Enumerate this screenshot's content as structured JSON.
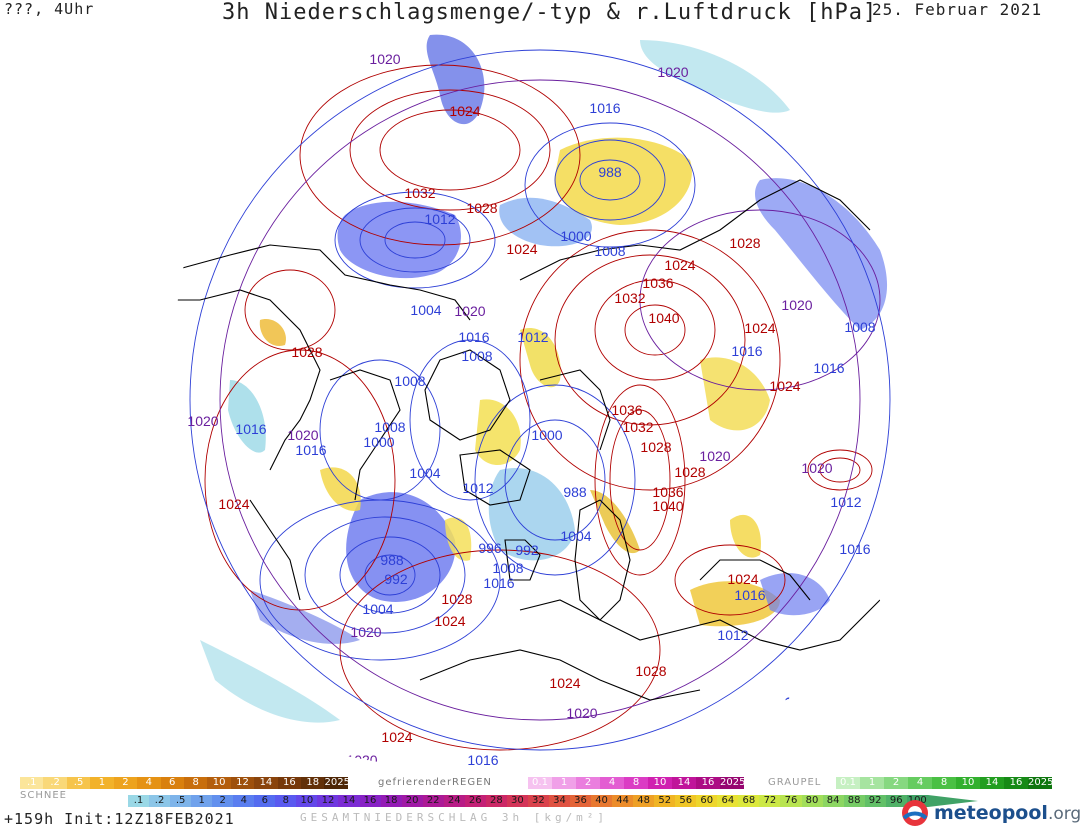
{
  "header": {
    "left": "???, 4Uhr",
    "title": "3h Niederschlagsmenge/-typ & r.Luftdruck [hPa]",
    "date": "25. Februar 2021"
  },
  "footer": {
    "run_info": "+159h Init:12Z18FEB2021",
    "total_label": "GESAMTNIEDERSCHLAG 3h [kg/m²]",
    "brand_main": "meteopool",
    "brand_tld": ".org"
  },
  "legend": {
    "snow_label": "SCHNEE",
    "freezing_label": "gefrierenderREGEN",
    "graupel_label": "GRAUPEL",
    "snow": {
      "values": [
        ".1",
        ".2",
        ".5",
        "1",
        "2",
        "4",
        "6",
        "8",
        "10",
        "12",
        "14",
        "16",
        "18",
        "2025+"
      ],
      "colors": [
        "#fbe59a",
        "#f9d878",
        "#f6c44c",
        "#f2b22a",
        "#eda31e",
        "#e59214",
        "#d9800e",
        "#c86e0c",
        "#b45e0c",
        "#9e500c",
        "#8a440c",
        "#76380a",
        "#623008",
        "#4e2606"
      ]
    },
    "freezing_rain": {
      "values": [
        "0.1",
        "1",
        "2",
        "4",
        "8",
        "10",
        "14",
        "16",
        "2025+"
      ],
      "colors": [
        "#f6c2f0",
        "#f0a0e8",
        "#ea7ede",
        "#e35cd2",
        "#db3cc4",
        "#d020b0",
        "#c0149a",
        "#ac0c84",
        "#960670"
      ]
    },
    "graupel": {
      "values": [
        "0.1",
        "1",
        "2",
        "4",
        "8",
        "10",
        "14",
        "16",
        "2025+"
      ],
      "colors": [
        "#c6f0c2",
        "#a6e4a0",
        "#86d880",
        "#66cc60",
        "#4ac044",
        "#32b02e",
        "#229e20",
        "#168a16",
        "#0e760e"
      ]
    },
    "total": {
      "values": [
        ".1",
        ".2",
        ".5",
        "1",
        "2",
        "4",
        "6",
        "8",
        "10",
        "12",
        "14",
        "16",
        "18",
        "20",
        "22",
        "24",
        "26",
        "28",
        "30",
        "32",
        "34",
        "36",
        "40",
        "44",
        "48",
        "52",
        "56",
        "60",
        "64",
        "68",
        "72",
        "76",
        "80",
        "84",
        "88",
        "92",
        "96",
        "100"
      ],
      "colors": [
        "#9ad8e6",
        "#8cc6e8",
        "#7eb4ea",
        "#70a2ec",
        "#6290ee",
        "#5a7ef0",
        "#546cf0",
        "#5a5af0",
        "#6448ea",
        "#7038e0",
        "#7c2cd4",
        "#8822c6",
        "#941cb6",
        "#a01aa6",
        "#ac1a96",
        "#b81c86",
        "#c42076",
        "#cc2866",
        "#d43458",
        "#da424c",
        "#e05242",
        "#e46438",
        "#e87830",
        "#ec8c2a",
        "#eea026",
        "#f0b424",
        "#f0c626",
        "#eed62c",
        "#e8e234",
        "#dce83c",
        "#cce846",
        "#b8e450",
        "#a2de5a",
        "#8cd662",
        "#76cc66",
        "#62c068",
        "#50b268",
        "#40a266"
      ]
    }
  },
  "map": {
    "isobar_labels": [
      {
        "text": "1020",
        "type": "mid"
      },
      {
        "text": "1024",
        "type": "high"
      },
      {
        "text": "1020",
        "type": "mid"
      },
      {
        "text": "1016",
        "type": "low"
      },
      {
        "text": "988",
        "type": "low"
      },
      {
        "text": "1032",
        "type": "high"
      },
      {
        "text": "1028",
        "type": "high"
      },
      {
        "text": "1012",
        "type": "low"
      },
      {
        "text": "1024",
        "type": "high"
      },
      {
        "text": "1000",
        "type": "low"
      },
      {
        "text": "1008",
        "type": "low"
      },
      {
        "text": "1028",
        "type": "high"
      },
      {
        "text": "1024",
        "type": "high"
      },
      {
        "text": "1036",
        "type": "high"
      },
      {
        "text": "1032",
        "type": "high"
      },
      {
        "text": "1040",
        "type": "high"
      },
      {
        "text": "1004",
        "type": "low"
      },
      {
        "text": "1020",
        "type": "mid"
      },
      {
        "text": "1016",
        "type": "low"
      },
      {
        "text": "1008",
        "type": "low"
      },
      {
        "text": "1012",
        "type": "low"
      },
      {
        "text": "1020",
        "type": "mid"
      },
      {
        "text": "1024",
        "type": "high"
      },
      {
        "text": "1008",
        "type": "low"
      },
      {
        "text": "1028",
        "type": "high"
      },
      {
        "text": "1016",
        "type": "low"
      },
      {
        "text": "1016",
        "type": "low"
      },
      {
        "text": "1008",
        "type": "low"
      },
      {
        "text": "1024",
        "type": "high"
      },
      {
        "text": "1020",
        "type": "mid"
      },
      {
        "text": "1016",
        "type": "low"
      },
      {
        "text": "1020",
        "type": "mid"
      },
      {
        "text": "1016",
        "type": "low"
      },
      {
        "text": "1008",
        "type": "low"
      },
      {
        "text": "1000",
        "type": "low"
      },
      {
        "text": "1036",
        "type": "high"
      },
      {
        "text": "1032",
        "type": "high"
      },
      {
        "text": "1000",
        "type": "low"
      },
      {
        "text": "1028",
        "type": "high"
      },
      {
        "text": "1004",
        "type": "low"
      },
      {
        "text": "1020",
        "type": "mid"
      },
      {
        "text": "1028",
        "type": "high"
      },
      {
        "text": "1020",
        "type": "mid"
      },
      {
        "text": "1012",
        "type": "low"
      },
      {
        "text": "1036",
        "type": "high"
      },
      {
        "text": "1040",
        "type": "high"
      },
      {
        "text": "1024",
        "type": "high"
      },
      {
        "text": "988",
        "type": "low"
      },
      {
        "text": "1004",
        "type": "low"
      },
      {
        "text": "996",
        "type": "low"
      },
      {
        "text": "992",
        "type": "low"
      },
      {
        "text": "1012",
        "type": "low"
      },
      {
        "text": "988",
        "type": "low"
      },
      {
        "text": "992",
        "type": "low"
      },
      {
        "text": "1008",
        "type": "low"
      },
      {
        "text": "1016",
        "type": "low"
      },
      {
        "text": "1016",
        "type": "low"
      },
      {
        "text": "1024",
        "type": "high"
      },
      {
        "text": "1028",
        "type": "high"
      },
      {
        "text": "1004",
        "type": "low"
      },
      {
        "text": "1024",
        "type": "high"
      },
      {
        "text": "1016",
        "type": "low"
      },
      {
        "text": "1020",
        "type": "mid"
      },
      {
        "text": "1012",
        "type": "low"
      },
      {
        "text": "1028",
        "type": "high"
      },
      {
        "text": "1024",
        "type": "high"
      },
      {
        "text": "1020",
        "type": "mid"
      },
      {
        "text": "1016",
        "type": "low"
      },
      {
        "text": "1024",
        "type": "high"
      },
      {
        "text": "1020",
        "type": "mid"
      },
      {
        "text": "1016",
        "type": "low"
      },
      {
        "text": "1016",
        "type": "low"
      }
    ],
    "colors": {
      "high": "#b00000",
      "mid": "#6a1f9e",
      "low": "#2d3fd6"
    }
  }
}
